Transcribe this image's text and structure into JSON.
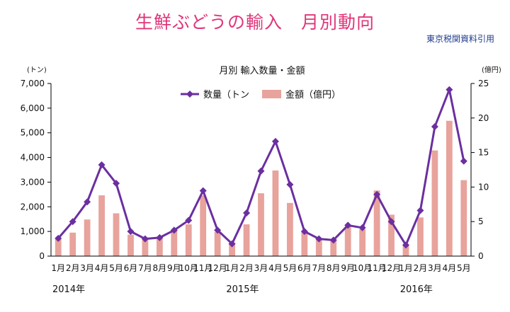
{
  "header": {
    "title": "生鮮ぶどうの輸入　月別動向",
    "source": "東京税関資料引用"
  },
  "chart_data": {
    "type": "bar+line",
    "title": "月別 輸入数量・金額",
    "categories": [
      "1月",
      "2月",
      "3月",
      "4月",
      "5月",
      "6月",
      "7月",
      "8月",
      "9月",
      "10月",
      "11月",
      "12月",
      "1月",
      "2月",
      "3月",
      "4月",
      "5月",
      "6月",
      "7月",
      "8月",
      "9月",
      "10月",
      "11月",
      "12月",
      "1月",
      "2月",
      "3月",
      "4月",
      "5月"
    ],
    "year_labels": [
      {
        "label": "2014年",
        "index": 0
      },
      {
        "label": "2015年",
        "index": 12
      },
      {
        "label": "2016年",
        "index": 24
      }
    ],
    "series": [
      {
        "name": "数量（トン",
        "type": "line",
        "axis": "left",
        "color": "#6b2fa0",
        "values": [
          720,
          1400,
          2200,
          3700,
          2950,
          1000,
          700,
          750,
          1050,
          1450,
          2650,
          1050,
          500,
          1750,
          3450,
          4650,
          2900,
          1000,
          700,
          650,
          1250,
          1150,
          2500,
          1400,
          450,
          1850,
          5250,
          6750,
          3850
        ]
      },
      {
        "name": "金額（億円）",
        "type": "bar",
        "axis": "right",
        "color": "#e8a39c",
        "values": [
          2.5,
          3.4,
          5.3,
          8.8,
          6.2,
          3.1,
          2.4,
          2.6,
          3.7,
          4.6,
          8.8,
          3.5,
          1.9,
          4.6,
          9.1,
          12.4,
          7.7,
          3.6,
          2.5,
          2.2,
          4.3,
          3.9,
          9.5,
          6.0,
          1.5,
          5.6,
          15.3,
          19.6,
          11.0
        ]
      }
    ],
    "y_left": {
      "unit": "(トン)",
      "ylim": [
        0,
        7000
      ],
      "ticks": [
        "0",
        "1,000",
        "2,000",
        "3,000",
        "4,000",
        "5,000",
        "6,000",
        "7,000"
      ]
    },
    "y_right": {
      "unit": "(億円)",
      "ylim": [
        0,
        25
      ],
      "ticks": [
        "0",
        "5",
        "10",
        "15",
        "20",
        "25"
      ]
    },
    "legend_placement": "top-center",
    "grid": false
  }
}
